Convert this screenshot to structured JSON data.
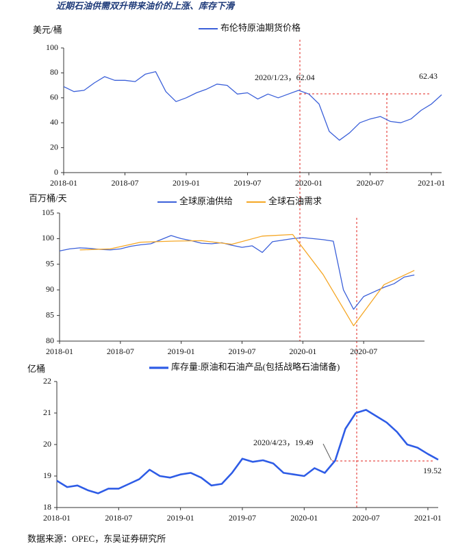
{
  "title": "近期石油供需双升带来油价的上涨、库存下滑",
  "source": "数据来源：OPEC，东吴证券研究所",
  "chart_data": [
    {
      "type": "line",
      "y_label": "美元/桶",
      "legend": "top",
      "x": [
        "2018-01",
        "2018-02",
        "2018-03",
        "2018-04",
        "2018-05",
        "2018-06",
        "2018-07",
        "2018-08",
        "2018-09",
        "2018-10",
        "2018-11",
        "2018-12",
        "2019-01",
        "2019-02",
        "2019-03",
        "2019-04",
        "2019-05",
        "2019-06",
        "2019-07",
        "2019-08",
        "2019-09",
        "2019-10",
        "2019-11",
        "2019-12",
        "2020-01",
        "2020-02",
        "2020-03",
        "2020-04",
        "2020-05",
        "2020-06",
        "2020-07",
        "2020-08",
        "2020-09",
        "2020-10",
        "2020-11",
        "2020-12",
        "2021-01",
        "2021-02"
      ],
      "series": [
        {
          "name": "布伦特原油期货价格",
          "color": "#3a5fd9",
          "values": [
            69,
            65,
            66,
            72,
            77,
            74,
            74,
            73,
            79,
            81,
            65,
            57,
            60,
            64,
            67,
            71,
            70,
            63,
            64,
            59,
            63,
            60,
            63,
            66,
            63,
            55,
            33,
            26,
            32,
            40,
            43,
            45,
            41,
            40,
            43,
            50,
            55,
            62.43
          ]
        }
      ],
      "xlim": [
        "2018-01",
        "2021-02"
      ],
      "xticks": [
        "2018-01",
        "2018-07",
        "2019-01",
        "2019-07",
        "2020-01",
        "2020-07",
        "2021-01"
      ],
      "ylim": [
        0,
        100
      ],
      "yticks": [
        0,
        20,
        40,
        60,
        80,
        100
      ],
      "annotations": [
        "2020/1/23，62.04",
        "62.43"
      ]
    },
    {
      "type": "line",
      "y_label": "百万桶/天",
      "legend": "top",
      "series": [
        {
          "name": "全球原油供给",
          "color": "#3a5fd9",
          "x": [
            "2018-01",
            "2018-02",
            "2018-03",
            "2018-04",
            "2018-05",
            "2018-06",
            "2018-07",
            "2018-08",
            "2018-09",
            "2018-10",
            "2018-11",
            "2018-12",
            "2019-01",
            "2019-02",
            "2019-03",
            "2019-04",
            "2019-05",
            "2019-06",
            "2019-07",
            "2019-08",
            "2019-09",
            "2019-10",
            "2019-11",
            "2019-12",
            "2020-01",
            "2020-02",
            "2020-03",
            "2020-04",
            "2020-05",
            "2020-06",
            "2020-07",
            "2020-08",
            "2020-09",
            "2020-10",
            "2020-11",
            "2020-12"
          ],
          "values": [
            97.6,
            98.0,
            98.2,
            98.1,
            97.9,
            97.8,
            98.0,
            98.5,
            98.8,
            99.0,
            99.8,
            100.6,
            100.0,
            99.6,
            99.1,
            99.0,
            99.2,
            98.7,
            98.3,
            98.6,
            97.3,
            99.4,
            99.7,
            100.0,
            100.2,
            100.0,
            99.8,
            99.5,
            90.0,
            86.2,
            88.7,
            89.6,
            90.5,
            91.2,
            92.5,
            92.9
          ]
        },
        {
          "name": "全球石油需求",
          "color": "#f5a623",
          "x": [
            "2018-03",
            "2018-06",
            "2018-09",
            "2018-12",
            "2019-03",
            "2019-06",
            "2019-09",
            "2019-12",
            "2020-03",
            "2020-06",
            "2020-09",
            "2020-12"
          ],
          "values": [
            97.8,
            98.0,
            99.3,
            99.5,
            99.6,
            98.9,
            100.5,
            100.8,
            93.0,
            83.0,
            91.0,
            93.8
          ]
        }
      ],
      "xlim": [
        "2018-01",
        "2021-01"
      ],
      "xticks": [
        "2018-01",
        "2018-07",
        "2019-01",
        "2019-07",
        "2020-01",
        "2020-07"
      ],
      "ylim": [
        80,
        105
      ],
      "yticks": [
        80,
        85,
        90,
        95,
        100,
        105
      ]
    },
    {
      "type": "line",
      "y_label": "亿桶",
      "legend": "top",
      "x": [
        "2018-01",
        "2018-02",
        "2018-03",
        "2018-04",
        "2018-05",
        "2018-06",
        "2018-07",
        "2018-08",
        "2018-09",
        "2018-10",
        "2018-11",
        "2018-12",
        "2019-01",
        "2019-02",
        "2019-03",
        "2019-04",
        "2019-05",
        "2019-06",
        "2019-07",
        "2019-08",
        "2019-09",
        "2019-10",
        "2019-11",
        "2019-12",
        "2020-01",
        "2020-02",
        "2020-03",
        "2020-04",
        "2020-05",
        "2020-06",
        "2020-07",
        "2020-08",
        "2020-09",
        "2020-10",
        "2020-11",
        "2020-12",
        "2021-01",
        "2021-02"
      ],
      "series": [
        {
          "name": "库存量:原油和石油产品(包括战略石油储备)",
          "color": "#2e5ce6",
          "values": [
            18.85,
            18.65,
            18.7,
            18.55,
            18.45,
            18.6,
            18.6,
            18.75,
            18.9,
            19.2,
            19.0,
            18.95,
            19.05,
            19.1,
            18.95,
            18.7,
            18.75,
            19.1,
            19.55,
            19.45,
            19.5,
            19.4,
            19.1,
            19.05,
            19.0,
            19.25,
            19.1,
            19.49,
            20.5,
            21.0,
            21.1,
            20.9,
            20.7,
            20.4,
            20.0,
            19.9,
            19.7,
            19.52
          ]
        }
      ],
      "xlim": [
        "2018-01",
        "2021-02"
      ],
      "xticks": [
        "2018-01",
        "2018-07",
        "2019-01",
        "2019-07",
        "2020-01",
        "2020-07",
        "2021-01"
      ],
      "ylim": [
        18,
        22
      ],
      "yticks": [
        18,
        19,
        20,
        21,
        22
      ],
      "annotations": [
        "2020/4/23，19.49",
        "19.52"
      ]
    }
  ]
}
